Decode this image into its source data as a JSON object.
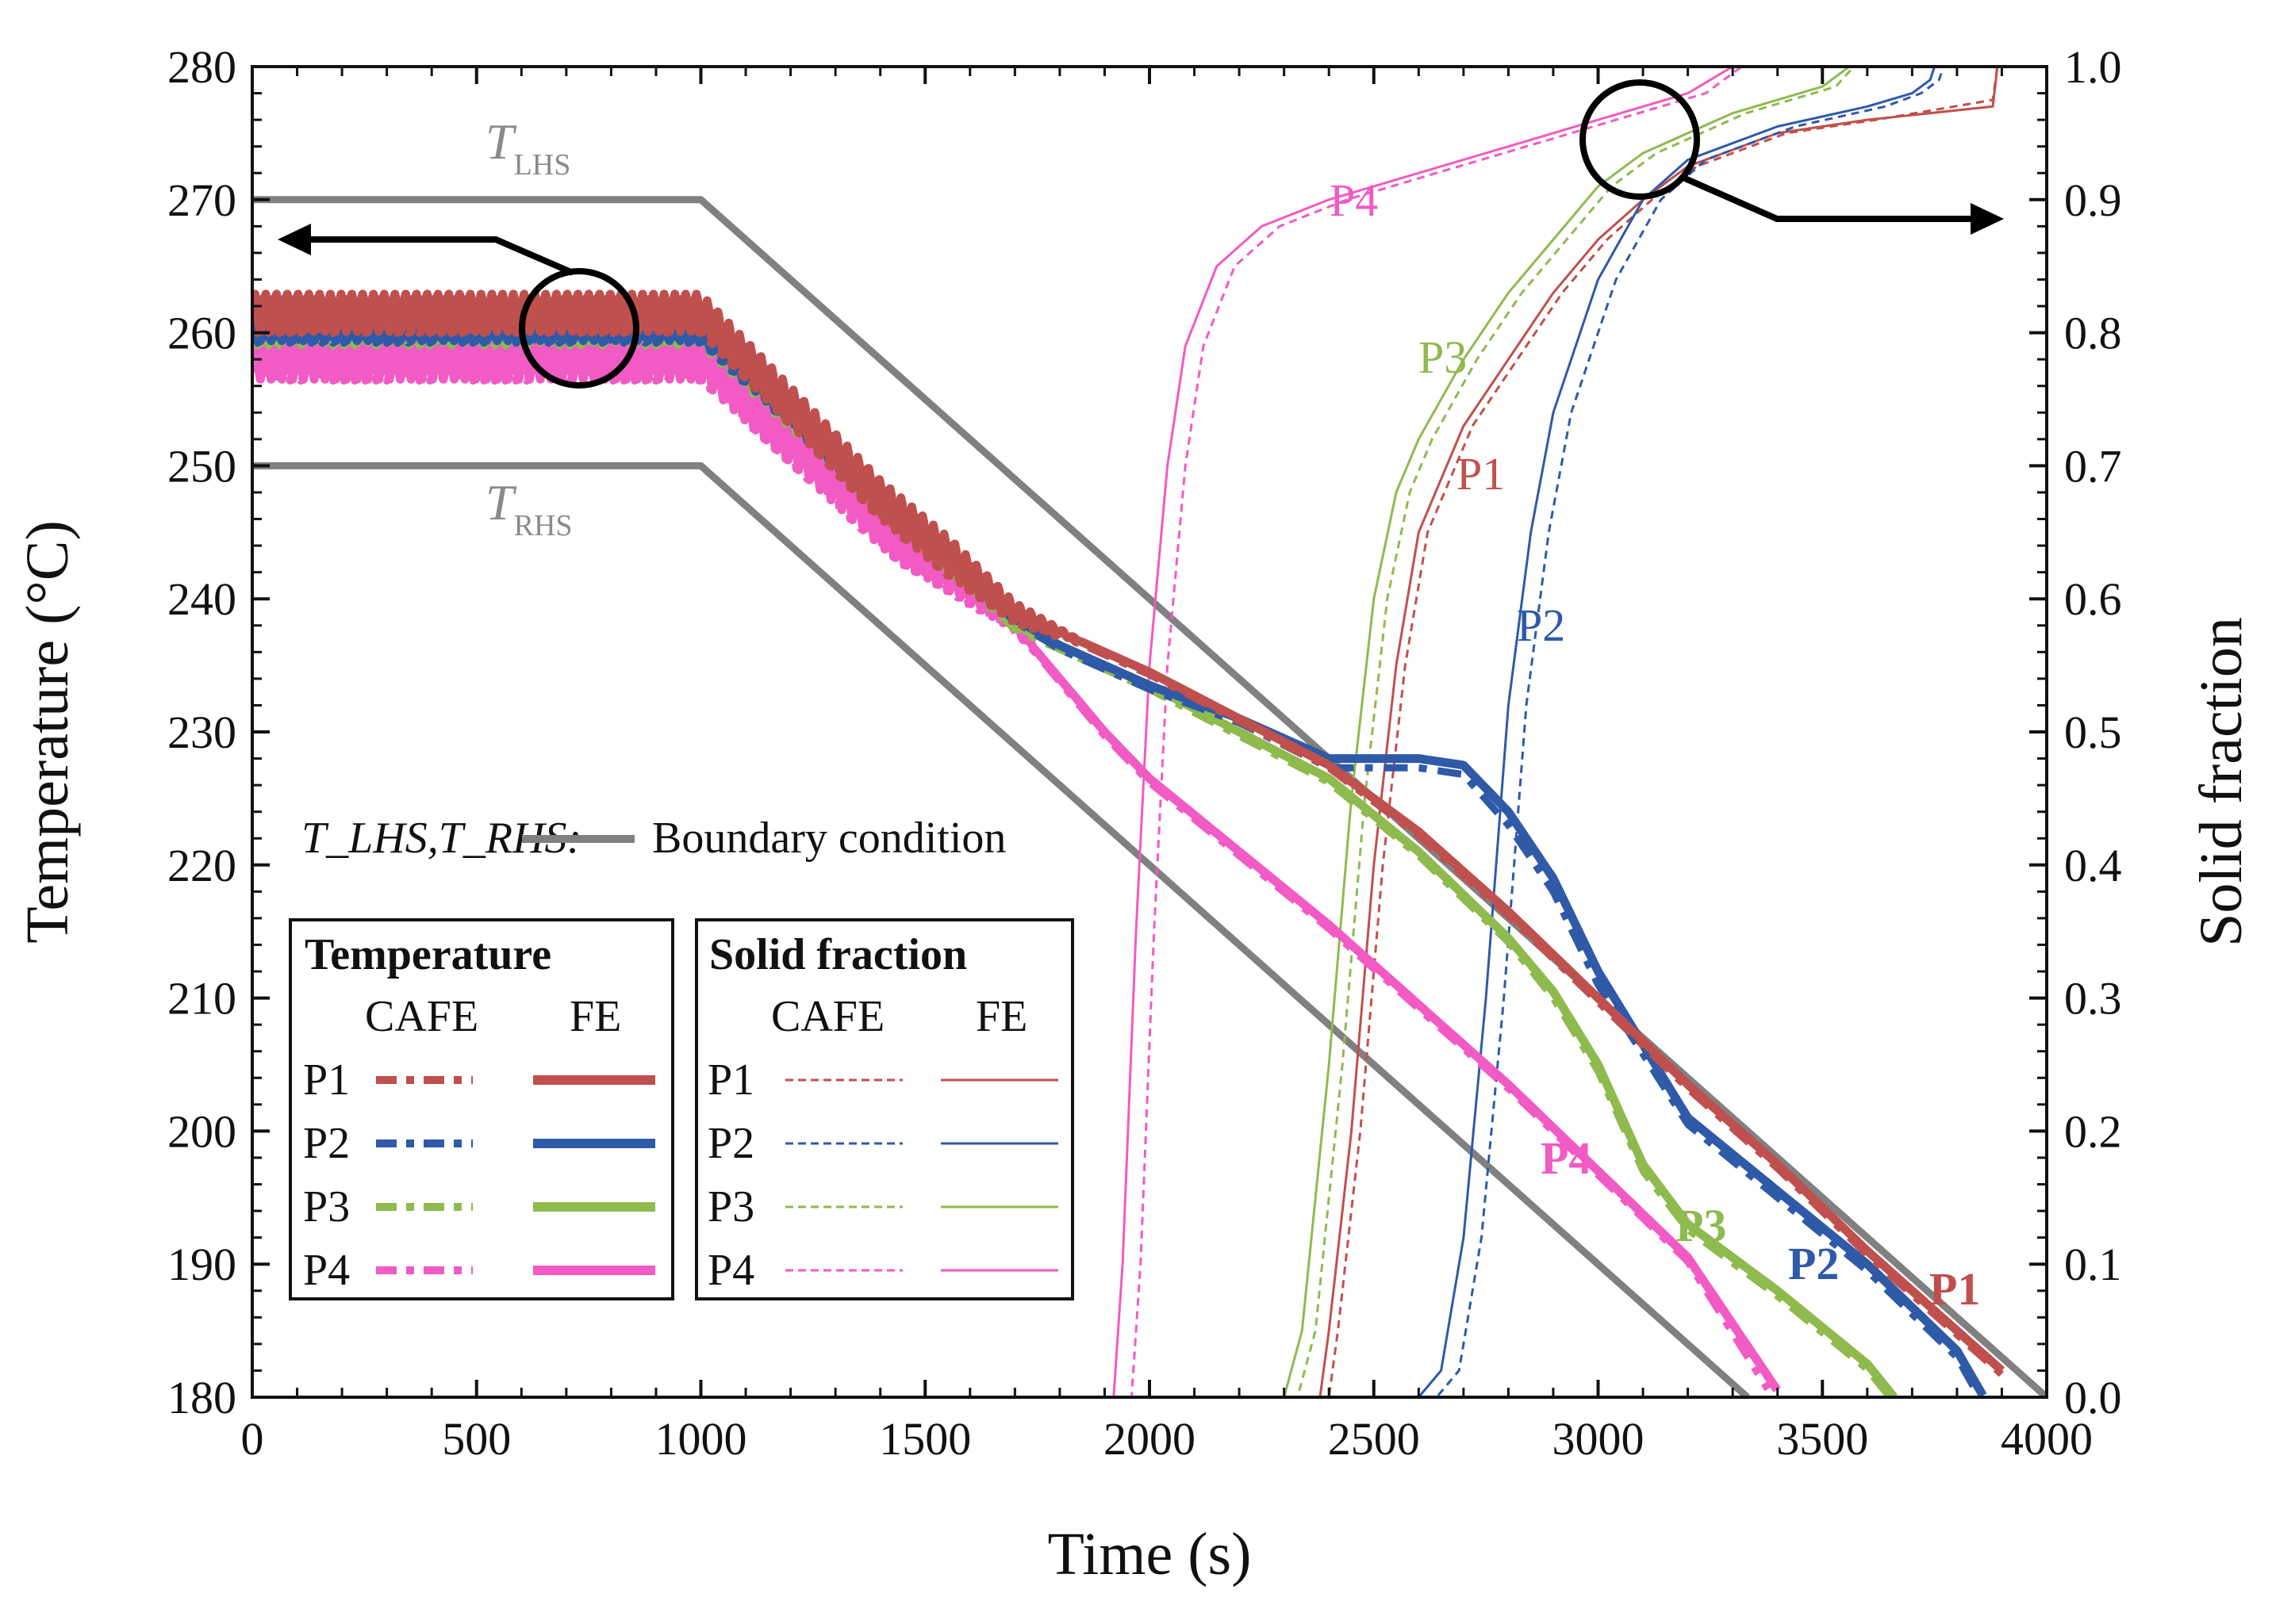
{
  "chart_data": {
    "type": "line",
    "xlabel": "Time (s)",
    "ylabel_left": "Temperature (°C)",
    "ylabel_right": "Solid fraction",
    "xlim": [
      0,
      4000
    ],
    "ylim_left": [
      180,
      280
    ],
    "ylim_right": [
      0.0,
      1.0
    ],
    "xticks": [
      0,
      500,
      1000,
      1500,
      2000,
      2500,
      3000,
      3500,
      4000
    ],
    "xtick_labels": [
      "0",
      "500",
      "1000",
      "1500",
      "2000",
      "2500",
      "3000",
      "3500",
      "4000"
    ],
    "yticks_left": [
      180,
      190,
      200,
      210,
      220,
      230,
      240,
      250,
      260,
      270,
      280
    ],
    "ytick_labels_left": [
      "180",
      "190",
      "200",
      "210",
      "220",
      "230",
      "240",
      "250",
      "260",
      "270",
      "280"
    ],
    "yticks_right": [
      0.0,
      0.1,
      0.2,
      0.3,
      0.4,
      0.5,
      0.6,
      0.7,
      0.8,
      0.9,
      1.0
    ],
    "ytick_labels_right": [
      "0.0",
      "0.1",
      "0.2",
      "0.3",
      "0.4",
      "0.5",
      "0.6",
      "0.7",
      "0.8",
      "0.9",
      "1.0"
    ],
    "colors": {
      "P1": "#c0504d",
      "P2": "#2e5aa8",
      "P3": "#8fba4e",
      "P4": "#f25ac4",
      "boundary": "#808080"
    },
    "boundary_series": [
      {
        "name": "T_LHS",
        "x": [
          0,
          1000,
          4000
        ],
        "y": [
          270,
          270,
          180
        ]
      },
      {
        "name": "T_RHS",
        "x": [
          0,
          1000,
          3333
        ],
        "y": [
          250,
          250,
          180
        ]
      }
    ],
    "temperature_series": [
      {
        "name": "P1",
        "method": "FE",
        "osc_until": 1850,
        "osc_amp": 1.4,
        "x": [
          0,
          1000,
          1400,
          1700,
          1800,
          2000,
          2400,
          2600,
          2800,
          3000,
          3200,
          3400,
          3600,
          3800,
          3900
        ],
        "y": [
          261.5,
          261.5,
          247.5,
          239,
          237.5,
          234.5,
          227.5,
          222.5,
          216.5,
          210,
          203.5,
          197.5,
          191,
          185,
          182
        ]
      },
      {
        "name": "P1",
        "method": "CAFE",
        "osc_until": 1850,
        "osc_amp": 1.4,
        "x": [
          0,
          1000,
          1400,
          1700,
          1800,
          2000,
          2400,
          2600,
          2800,
          3000,
          3200,
          3400,
          3600,
          3800,
          3900
        ],
        "y": [
          261.3,
          261.3,
          247.3,
          238.8,
          237.3,
          234.3,
          227.3,
          222.2,
          216.2,
          209.7,
          203.2,
          197.2,
          190.7,
          184.7,
          181.7
        ]
      },
      {
        "name": "P2",
        "method": "FE",
        "osc_until": 1700,
        "osc_amp": 0.6,
        "x": [
          0,
          1000,
          1400,
          1700,
          1800,
          2000,
          2200,
          2400,
          2600,
          2700,
          2800,
          2900,
          3000,
          3100,
          3200,
          3400,
          3600,
          3800,
          3860
        ],
        "y": [
          260,
          260,
          247.5,
          238.5,
          236.5,
          233.5,
          231,
          228,
          228,
          227.5,
          224,
          219,
          212,
          206.5,
          201,
          195.5,
          190,
          183.5,
          180
        ]
      },
      {
        "name": "P2",
        "method": "CAFE",
        "osc_until": 1700,
        "osc_amp": 0.6,
        "x": [
          0,
          1000,
          1400,
          1700,
          1800,
          2000,
          2200,
          2400,
          2600,
          2700,
          2800,
          2900,
          3000,
          3100,
          3200,
          3400,
          3600,
          3800,
          3850
        ],
        "y": [
          259.8,
          259.8,
          247.3,
          238.3,
          236.2,
          233.2,
          230.7,
          227.3,
          227.3,
          226.8,
          223,
          218,
          211,
          205.8,
          200.5,
          195,
          189.5,
          183,
          180
        ]
      },
      {
        "name": "P3",
        "method": "FE",
        "osc_until": 1700,
        "osc_amp": 0.7,
        "x": [
          0,
          1000,
          1400,
          1700,
          1800,
          2000,
          2200,
          2400,
          2600,
          2800,
          2900,
          3000,
          3100,
          3200,
          3400,
          3600,
          3660
        ],
        "y": [
          260,
          260,
          247.5,
          238,
          236.5,
          233.5,
          230,
          226.5,
          221,
          214.5,
          210.5,
          205,
          197.5,
          193,
          188,
          182.5,
          180
        ]
      },
      {
        "name": "P3",
        "method": "CAFE",
        "osc_until": 1700,
        "osc_amp": 0.7,
        "x": [
          0,
          1000,
          1400,
          1700,
          1800,
          2000,
          2200,
          2400,
          2600,
          2800,
          2900,
          3000,
          3100,
          3200,
          3400,
          3600,
          3650
        ],
        "y": [
          259.7,
          259.7,
          247.2,
          237.7,
          236.2,
          233.2,
          229.7,
          226.2,
          220.7,
          214.2,
          210,
          204.5,
          197,
          192.6,
          187.6,
          182.1,
          180
        ]
      },
      {
        "name": "P4",
        "method": "FE",
        "osc_until": 1750,
        "osc_amp": 2.0,
        "x": [
          0,
          1000,
          1400,
          1700,
          1900,
          2000,
          2200,
          2400,
          2600,
          2800,
          3000,
          3200,
          3400
        ],
        "y": [
          258.5,
          258.5,
          246,
          238,
          230,
          226.5,
          221,
          215.5,
          209.5,
          203.5,
          197,
          190.5,
          180.5
        ]
      },
      {
        "name": "P4",
        "method": "CAFE",
        "osc_until": 1750,
        "osc_amp": 2.0,
        "x": [
          0,
          1000,
          1400,
          1700,
          1900,
          2000,
          2200,
          2400,
          2600,
          2800,
          3000,
          3200,
          3380
        ],
        "y": [
          258.3,
          258.3,
          245.8,
          237.8,
          229.7,
          226.2,
          220.7,
          215.2,
          209.2,
          203.2,
          196.7,
          190.2,
          180.5
        ]
      }
    ],
    "solid_fraction_series": [
      {
        "name": "P1",
        "method": "FE",
        "x": [
          0,
          2380,
          2400,
          2450,
          2500,
          2550,
          2600,
          2700,
          2800,
          2900,
          3000,
          3100,
          3200,
          3400,
          3600,
          3880,
          3890
        ],
        "y": [
          0,
          0,
          0.05,
          0.2,
          0.4,
          0.55,
          0.65,
          0.73,
          0.78,
          0.83,
          0.87,
          0.9,
          0.925,
          0.95,
          0.96,
          0.97,
          1.0
        ]
      },
      {
        "name": "P1",
        "method": "CAFE",
        "x": [
          0,
          2400,
          2420,
          2470,
          2520,
          2570,
          2620,
          2720,
          2820,
          2920,
          3020,
          3120,
          3220,
          3420,
          3620,
          3880,
          3890
        ],
        "y": [
          0,
          0,
          0.05,
          0.2,
          0.4,
          0.55,
          0.65,
          0.73,
          0.78,
          0.83,
          0.87,
          0.9,
          0.925,
          0.95,
          0.96,
          0.975,
          1.0
        ]
      },
      {
        "name": "P2",
        "method": "FE",
        "x": [
          0,
          2600,
          2650,
          2700,
          2750,
          2800,
          2850,
          2900,
          3000,
          3100,
          3200,
          3400,
          3600,
          3700,
          3740,
          3750
        ],
        "y": [
          0,
          0,
          0.02,
          0.12,
          0.3,
          0.52,
          0.65,
          0.74,
          0.84,
          0.9,
          0.93,
          0.955,
          0.97,
          0.98,
          0.99,
          1.0
        ]
      },
      {
        "name": "P2",
        "method": "CAFE",
        "x": [
          0,
          2640,
          2690,
          2740,
          2790,
          2840,
          2890,
          2940,
          3040,
          3140,
          3240,
          3440,
          3640,
          3720,
          3760,
          3770
        ],
        "y": [
          0,
          0,
          0.02,
          0.12,
          0.3,
          0.52,
          0.65,
          0.74,
          0.84,
          0.9,
          0.93,
          0.955,
          0.97,
          0.98,
          0.99,
          1.0
        ]
      },
      {
        "name": "P3",
        "method": "FE",
        "x": [
          0,
          2300,
          2340,
          2400,
          2450,
          2500,
          2550,
          2600,
          2700,
          2800,
          2900,
          3000,
          3100,
          3300,
          3500,
          3560
        ],
        "y": [
          0,
          0,
          0.05,
          0.25,
          0.45,
          0.6,
          0.68,
          0.72,
          0.78,
          0.83,
          0.87,
          0.91,
          0.935,
          0.965,
          0.985,
          1.0
        ]
      },
      {
        "name": "P3",
        "method": "CAFE",
        "x": [
          0,
          2330,
          2370,
          2430,
          2480,
          2530,
          2580,
          2630,
          2730,
          2830,
          2930,
          3030,
          3130,
          3330,
          3530,
          3570
        ],
        "y": [
          0,
          0,
          0.05,
          0.25,
          0.45,
          0.6,
          0.68,
          0.72,
          0.78,
          0.83,
          0.87,
          0.91,
          0.935,
          0.965,
          0.985,
          1.0
        ]
      },
      {
        "name": "P4",
        "method": "FE",
        "x": [
          0,
          1920,
          1940,
          1970,
          2000,
          2040,
          2080,
          2150,
          2250,
          2400,
          2600,
          2800,
          3000,
          3200,
          3300
        ],
        "y": [
          0,
          0,
          0.1,
          0.35,
          0.55,
          0.7,
          0.79,
          0.85,
          0.88,
          0.9,
          0.92,
          0.94,
          0.96,
          0.98,
          1.0
        ]
      },
      {
        "name": "P4",
        "method": "CAFE",
        "x": [
          0,
          1960,
          1980,
          2010,
          2040,
          2080,
          2120,
          2190,
          2290,
          2440,
          2640,
          2840,
          3040,
          3240,
          3320
        ],
        "y": [
          0,
          0,
          0.1,
          0.35,
          0.55,
          0.7,
          0.79,
          0.85,
          0.88,
          0.9,
          0.92,
          0.94,
          0.96,
          0.98,
          1.0
        ]
      }
    ],
    "legend": {
      "boundary_prefix": "T_LHS,T_RHS:",
      "boundary_label": "Boundary condition",
      "temperature_title": "Temperature",
      "solid_fraction_title": "Solid fraction",
      "col_cafe": "CAFE",
      "col_fe": "FE",
      "rows": [
        "P1",
        "P2",
        "P3",
        "P4"
      ]
    },
    "annotations": {
      "t_lhs_main": "T",
      "t_lhs_sub": "LHS",
      "t_rhs_main": "T",
      "t_rhs_sub": "RHS",
      "temp_labels": [
        "P1",
        "P2",
        "P3",
        "P4"
      ],
      "sf_labels": [
        "P1",
        "P2",
        "P3",
        "P4"
      ]
    }
  }
}
